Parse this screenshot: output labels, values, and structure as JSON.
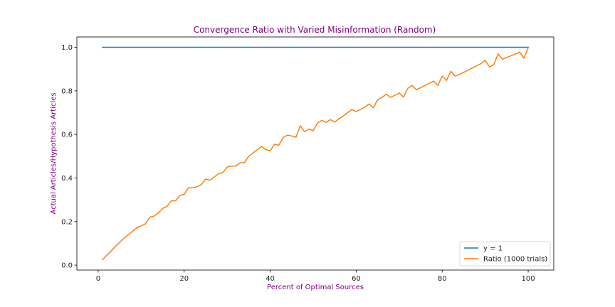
{
  "chart_data": {
    "type": "line",
    "title": "Convergence Ratio with Varied Misinformation (Random)",
    "xlabel": "Percent of Optimal Sources",
    "ylabel": "Actual Articles/Hypothesis Articles",
    "xlim": [
      -4.95,
      105.95
    ],
    "ylim": [
      -0.0225,
      1.0475
    ],
    "xticks": [
      0,
      20,
      40,
      60,
      80,
      100
    ],
    "yticks": [
      0.0,
      0.2,
      0.4,
      0.6,
      0.8,
      1.0
    ],
    "legend_position": "lower right",
    "grid": false,
    "series": [
      {
        "name": "y = 1",
        "color": "#1f77b4",
        "x": [
          1,
          100
        ],
        "y": [
          1.0,
          1.0
        ]
      },
      {
        "name": "Ratio (1000 trials)",
        "color": "#ff7f0e",
        "x": [
          1,
          2,
          3,
          4,
          5,
          6,
          7,
          8,
          9,
          10,
          11,
          12,
          13,
          14,
          15,
          16,
          17,
          18,
          19,
          20,
          21,
          22,
          23,
          24,
          25,
          26,
          27,
          28,
          29,
          30,
          31,
          32,
          33,
          34,
          35,
          36,
          37,
          38,
          39,
          40,
          41,
          42,
          43,
          44,
          45,
          46,
          47,
          48,
          49,
          50,
          51,
          52,
          53,
          54,
          55,
          56,
          57,
          58,
          59,
          60,
          61,
          62,
          63,
          64,
          65,
          66,
          67,
          68,
          69,
          70,
          71,
          72,
          73,
          74,
          75,
          76,
          77,
          78,
          79,
          80,
          81,
          82,
          83,
          84,
          85,
          86,
          87,
          88,
          89,
          90,
          91,
          92,
          93,
          94,
          95,
          96,
          97,
          98,
          99,
          100
        ],
        "y": [
          0.025,
          0.045,
          0.065,
          0.085,
          0.105,
          0.123,
          0.14,
          0.155,
          0.172,
          0.18,
          0.19,
          0.22,
          0.225,
          0.24,
          0.26,
          0.27,
          0.295,
          0.295,
          0.32,
          0.325,
          0.355,
          0.355,
          0.36,
          0.37,
          0.395,
          0.39,
          0.405,
          0.42,
          0.425,
          0.45,
          0.455,
          0.455,
          0.47,
          0.47,
          0.5,
          0.515,
          0.53,
          0.545,
          0.53,
          0.525,
          0.555,
          0.55,
          0.585,
          0.597,
          0.593,
          0.587,
          0.64,
          0.612,
          0.625,
          0.617,
          0.652,
          0.665,
          0.655,
          0.668,
          0.657,
          0.672,
          0.685,
          0.7,
          0.715,
          0.705,
          0.715,
          0.725,
          0.74,
          0.722,
          0.76,
          0.77,
          0.785,
          0.77,
          0.78,
          0.79,
          0.772,
          0.812,
          0.825,
          0.805,
          0.815,
          0.825,
          0.835,
          0.845,
          0.825,
          0.868,
          0.848,
          0.89,
          0.868,
          0.876,
          0.885,
          0.895,
          0.905,
          0.915,
          0.925,
          0.94,
          0.91,
          0.92,
          0.97,
          0.945,
          0.953,
          0.961,
          0.969,
          0.978,
          0.95,
          0.998
        ]
      }
    ]
  }
}
